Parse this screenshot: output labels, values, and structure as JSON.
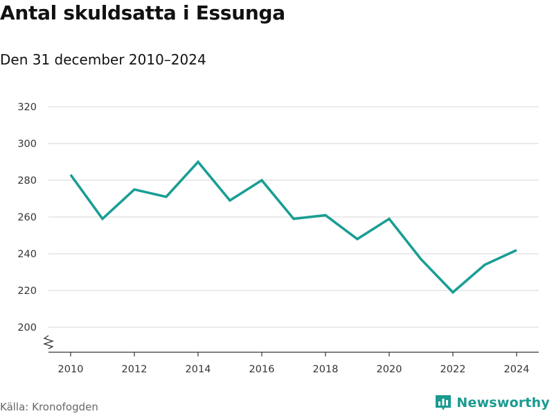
{
  "title": "Antal skuldsatta i Essunga",
  "subtitle": "Den 31 december 2010–2024",
  "source": "Källa: Kronofogden",
  "logo": {
    "text": "Newsworthy",
    "icon": "newsworthy-logo-icon"
  },
  "colors": {
    "line": "#1a9e94",
    "grid": "#dddddd",
    "brand": "#1a9a90"
  },
  "chart_data": {
    "type": "line",
    "title": "Antal skuldsatta i Essunga",
    "subtitle": "Den 31 december 2010–2024",
    "xlabel": "",
    "ylabel": "",
    "x": [
      2010,
      2011,
      2012,
      2013,
      2014,
      2015,
      2016,
      2017,
      2018,
      2019,
      2020,
      2021,
      2022,
      2023,
      2024
    ],
    "values": [
      283,
      259,
      275,
      271,
      290,
      269,
      280,
      259,
      261,
      248,
      259,
      237,
      219,
      234,
      242
    ],
    "ylim": [
      200,
      320
    ],
    "yticks": [
      200,
      220,
      240,
      260,
      280,
      300,
      320
    ],
    "xticks": [
      2010,
      2012,
      2014,
      2016,
      2018,
      2020,
      2022,
      2024
    ],
    "grid": "horizontal",
    "axis_break": true
  }
}
